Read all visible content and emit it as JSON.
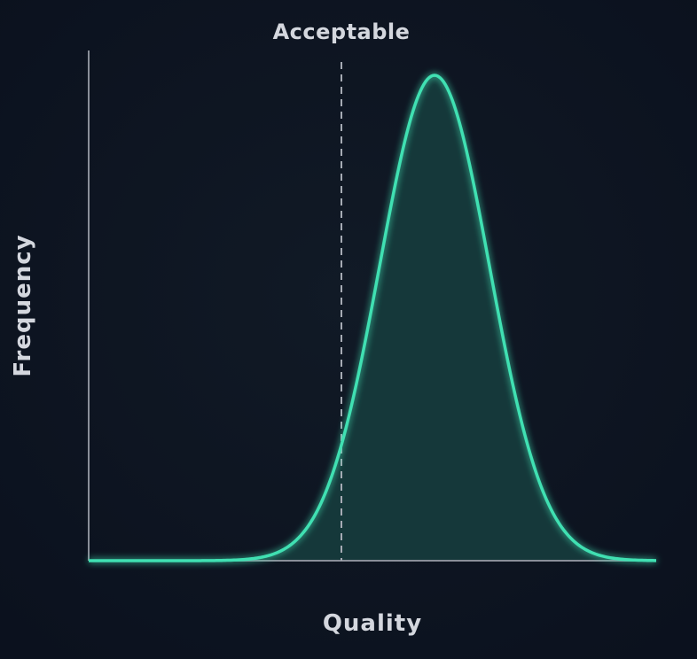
{
  "marker_label": "Acceptable",
  "x_axis_label": "Quality",
  "y_axis_label": "Frequency"
}
